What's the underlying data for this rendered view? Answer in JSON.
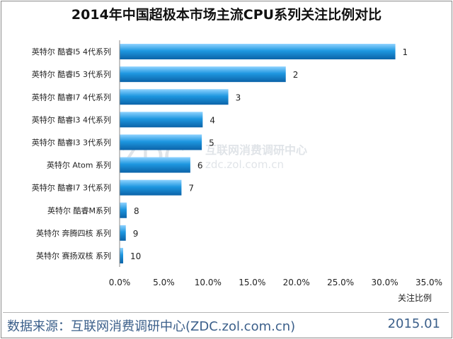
{
  "chart_data": {
    "type": "bar",
    "orientation": "horizontal",
    "title": "2014年中国超极本市场主流CPU系列关注比例对比",
    "xlabel": "关注比例",
    "xlim": [
      0,
      35
    ],
    "xticks": [
      "0.0%",
      "5.0%",
      "10.0%",
      "15.0%",
      "20.0%",
      "25.0%",
      "30.0%",
      "35.0%"
    ],
    "categories": [
      "英特尔 酷睿I5 4代系列",
      "英特尔 酷睿I5 3代系列",
      "英特尔 酷睿I7 4代系列",
      "英特尔 酷睿I3 4代系列",
      "英特尔 酷睿I3 3代系列",
      "英特尔 Atom 系列",
      "英特尔 酷睿I7 3代系列",
      "英特尔 酷睿M系列",
      "英特尔 奔腾四核 系列",
      "英特尔 赛扬双核 系列"
    ],
    "values": [
      31.2,
      18.8,
      12.3,
      9.4,
      9.3,
      8.0,
      7.0,
      0.8,
      0.7,
      0.4
    ],
    "rank_labels": [
      "1",
      "2",
      "3",
      "4",
      "5",
      "6",
      "7",
      "8",
      "9",
      "10"
    ],
    "bar_color": "#1a8fd6",
    "grid": false
  },
  "watermark": {
    "logo": "ZDC",
    "cn": "互联网消费调研中心",
    "url": "zdc.zol.com.cn"
  },
  "footer": {
    "source": "数据来源：互联网消费调研中心(ZDC.zol.com.cn)",
    "date": "2015.01"
  }
}
